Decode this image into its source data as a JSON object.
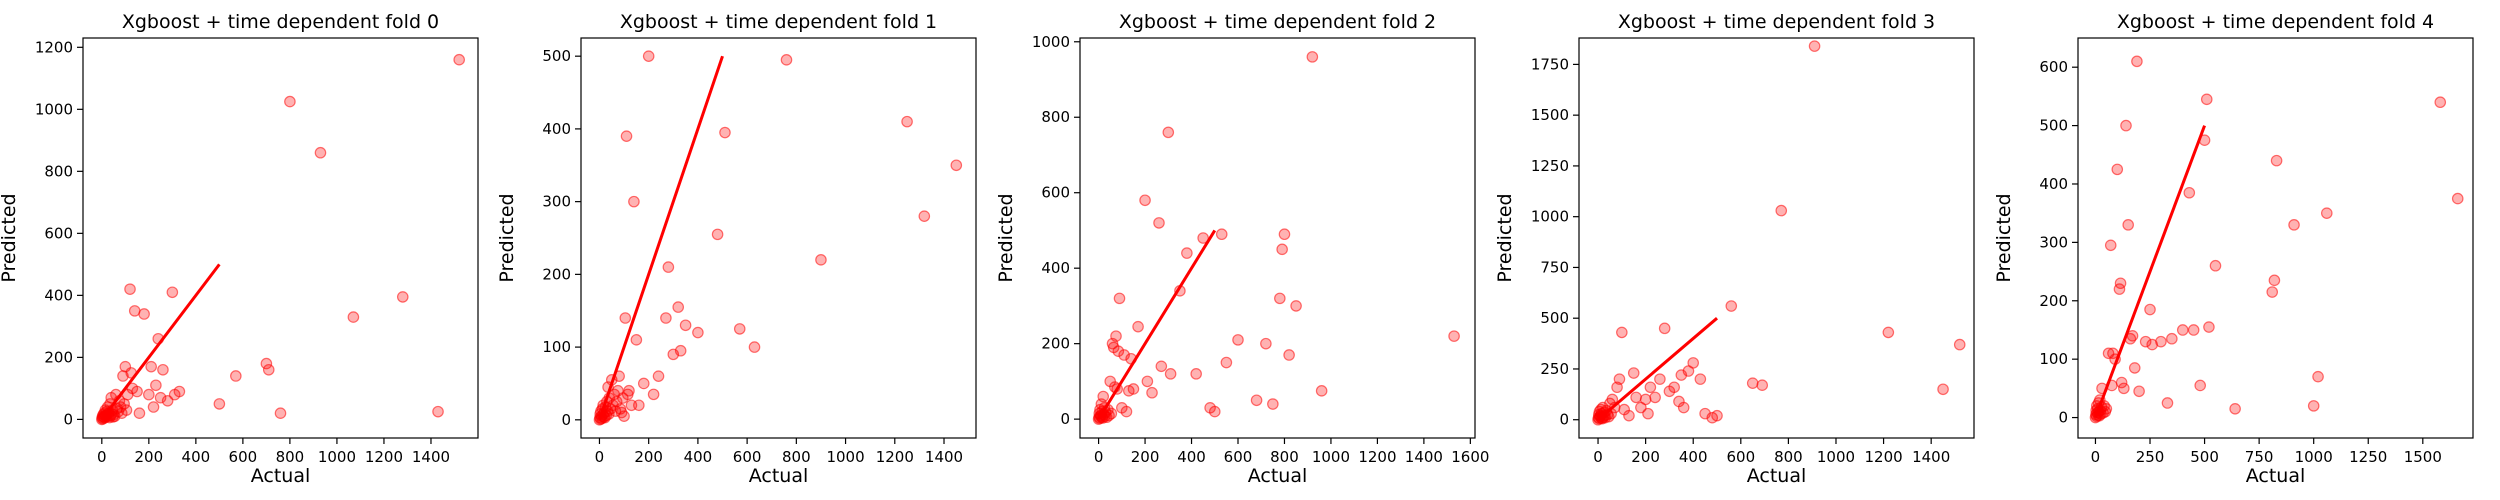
{
  "colors": {
    "points": "#ff0000",
    "line": "#ff0000",
    "frame": "#000000"
  },
  "chart_data": [
    {
      "type": "scatter",
      "title": "Xgboost + time dependent fold 0",
      "xlabel": "Actual",
      "ylabel": "Predicted",
      "xlim": [
        -80,
        1600
      ],
      "ylim": [
        -60,
        1230
      ],
      "xticks": [
        0,
        200,
        400,
        600,
        800,
        1000,
        1200,
        1400
      ],
      "yticks": [
        0,
        200,
        400,
        600,
        800,
        1000,
        1200
      ],
      "line": [
        [
          0,
          0
        ],
        [
          500,
          500
        ]
      ],
      "points": [
        [
          0,
          0
        ],
        [
          2,
          5
        ],
        [
          3,
          10
        ],
        [
          5,
          2
        ],
        [
          6,
          15
        ],
        [
          8,
          8
        ],
        [
          10,
          20
        ],
        [
          12,
          5
        ],
        [
          14,
          12
        ],
        [
          15,
          30
        ],
        [
          18,
          8
        ],
        [
          20,
          25
        ],
        [
          22,
          15
        ],
        [
          25,
          40
        ],
        [
          28,
          10
        ],
        [
          30,
          20
        ],
        [
          33,
          6
        ],
        [
          35,
          50
        ],
        [
          38,
          12
        ],
        [
          40,
          70
        ],
        [
          42,
          18
        ],
        [
          45,
          30
        ],
        [
          48,
          8
        ],
        [
          50,
          15
        ],
        [
          55,
          10
        ],
        [
          60,
          80
        ],
        [
          65,
          35
        ],
        [
          70,
          25
        ],
        [
          75,
          60
        ],
        [
          80,
          40
        ],
        [
          85,
          20
        ],
        [
          90,
          140
        ],
        [
          95,
          50
        ],
        [
          100,
          170
        ],
        [
          105,
          30
        ],
        [
          110,
          80
        ],
        [
          120,
          420
        ],
        [
          125,
          150
        ],
        [
          130,
          100
        ],
        [
          140,
          350
        ],
        [
          150,
          90
        ],
        [
          160,
          20
        ],
        [
          180,
          340
        ],
        [
          200,
          80
        ],
        [
          210,
          170
        ],
        [
          220,
          40
        ],
        [
          230,
          110
        ],
        [
          240,
          260
        ],
        [
          250,
          70
        ],
        [
          260,
          160
        ],
        [
          280,
          60
        ],
        [
          300,
          410
        ],
        [
          310,
          80
        ],
        [
          330,
          90
        ],
        [
          500,
          50
        ],
        [
          570,
          140
        ],
        [
          700,
          180
        ],
        [
          710,
          160
        ],
        [
          760,
          20
        ],
        [
          800,
          1025
        ],
        [
          930,
          860
        ],
        [
          1070,
          330
        ],
        [
          1280,
          395
        ],
        [
          1430,
          25
        ],
        [
          1520,
          1160
        ]
      ]
    },
    {
      "type": "scatter",
      "title": "Xgboost + time dependent fold 1",
      "xlabel": "Actual",
      "ylabel": "Predicted",
      "xlim": [
        -75,
        1530
      ],
      "ylim": [
        -25,
        525
      ],
      "xticks": [
        0,
        200,
        400,
        600,
        800,
        1000,
        1200,
        1400
      ],
      "yticks": [
        0,
        100,
        200,
        300,
        400,
        500
      ],
      "line": [
        [
          0,
          0
        ],
        [
          500,
          500
        ]
      ],
      "points": [
        [
          0,
          0
        ],
        [
          2,
          3
        ],
        [
          3,
          8
        ],
        [
          5,
          1
        ],
        [
          6,
          12
        ],
        [
          8,
          5
        ],
        [
          10,
          2
        ],
        [
          12,
          15
        ],
        [
          14,
          7
        ],
        [
          15,
          20
        ],
        [
          18,
          4
        ],
        [
          20,
          10
        ],
        [
          22,
          3
        ],
        [
          25,
          18
        ],
        [
          28,
          6
        ],
        [
          30,
          25
        ],
        [
          33,
          12
        ],
        [
          35,
          45
        ],
        [
          38,
          8
        ],
        [
          40,
          30
        ],
        [
          45,
          15
        ],
        [
          50,
          55
        ],
        [
          55,
          20
        ],
        [
          60,
          35
        ],
        [
          65,
          12
        ],
        [
          70,
          25
        ],
        [
          75,
          40
        ],
        [
          80,
          60
        ],
        [
          85,
          15
        ],
        [
          90,
          10
        ],
        [
          95,
          30
        ],
        [
          100,
          5
        ],
        [
          105,
          140
        ],
        [
          110,
          390
        ],
        [
          115,
          35
        ],
        [
          120,
          40
        ],
        [
          130,
          20
        ],
        [
          140,
          300
        ],
        [
          150,
          110
        ],
        [
          160,
          20
        ],
        [
          180,
          50
        ],
        [
          200,
          500
        ],
        [
          220,
          35
        ],
        [
          240,
          60
        ],
        [
          270,
          140
        ],
        [
          280,
          210
        ],
        [
          300,
          90
        ],
        [
          320,
          155
        ],
        [
          330,
          95
        ],
        [
          350,
          130
        ],
        [
          400,
          120
        ],
        [
          480,
          255
        ],
        [
          510,
          395
        ],
        [
          570,
          125
        ],
        [
          630,
          100
        ],
        [
          760,
          495
        ],
        [
          900,
          220
        ],
        [
          1250,
          410
        ],
        [
          1320,
          280
        ],
        [
          1450,
          350
        ]
      ]
    },
    {
      "type": "scatter",
      "title": "Xgboost + time dependent fold 2",
      "xlabel": "Actual",
      "ylabel": "Predicted",
      "xlim": [
        -80,
        1620
      ],
      "ylim": [
        -50,
        1010
      ],
      "xticks": [
        0,
        200,
        400,
        600,
        800,
        1000,
        1200,
        1400,
        1600
      ],
      "yticks": [
        0,
        200,
        400,
        600,
        800,
        1000
      ],
      "line": [
        [
          0,
          0
        ],
        [
          500,
          500
        ]
      ],
      "points": [
        [
          0,
          0
        ],
        [
          2,
          5
        ],
        [
          3,
          15
        ],
        [
          5,
          2
        ],
        [
          6,
          25
        ],
        [
          8,
          8
        ],
        [
          10,
          10
        ],
        [
          12,
          40
        ],
        [
          14,
          5
        ],
        [
          15,
          20
        ],
        [
          18,
          3
        ],
        [
          20,
          60
        ],
        [
          22,
          12
        ],
        [
          25,
          30
        ],
        [
          28,
          8
        ],
        [
          30,
          18
        ],
        [
          35,
          5
        ],
        [
          40,
          25
        ],
        [
          45,
          10
        ],
        [
          50,
          100
        ],
        [
          55,
          15
        ],
        [
          60,
          200
        ],
        [
          65,
          190
        ],
        [
          70,
          85
        ],
        [
          75,
          220
        ],
        [
          80,
          80
        ],
        [
          85,
          180
        ],
        [
          90,
          320
        ],
        [
          100,
          30
        ],
        [
          110,
          170
        ],
        [
          120,
          20
        ],
        [
          130,
          75
        ],
        [
          140,
          160
        ],
        [
          150,
          80
        ],
        [
          170,
          245
        ],
        [
          200,
          580
        ],
        [
          210,
          100
        ],
        [
          230,
          70
        ],
        [
          260,
          520
        ],
        [
          270,
          140
        ],
        [
          300,
          760
        ],
        [
          310,
          120
        ],
        [
          350,
          340
        ],
        [
          380,
          440
        ],
        [
          420,
          120
        ],
        [
          450,
          480
        ],
        [
          480,
          30
        ],
        [
          500,
          20
        ],
        [
          530,
          490
        ],
        [
          550,
          150
        ],
        [
          600,
          210
        ],
        [
          680,
          50
        ],
        [
          720,
          200
        ],
        [
          750,
          40
        ],
        [
          780,
          320
        ],
        [
          790,
          450
        ],
        [
          800,
          490
        ],
        [
          820,
          170
        ],
        [
          850,
          300
        ],
        [
          920,
          960
        ],
        [
          960,
          75
        ],
        [
          1530,
          220
        ]
      ]
    },
    {
      "type": "scatter",
      "title": "Xgboost + time dependent fold 3",
      "xlabel": "Actual",
      "ylabel": "Predicted",
      "xlim": [
        -80,
        1580
      ],
      "ylim": [
        -90,
        1880
      ],
      "xticks": [
        0,
        200,
        400,
        600,
        800,
        1000,
        1200,
        1400
      ],
      "yticks": [
        0,
        250,
        500,
        750,
        1000,
        1250,
        1500,
        1750
      ],
      "line": [
        [
          0,
          0
        ],
        [
          500,
          500
        ]
      ],
      "points": [
        [
          0,
          0
        ],
        [
          2,
          10
        ],
        [
          3,
          25
        ],
        [
          5,
          5
        ],
        [
          6,
          40
        ],
        [
          8,
          15
        ],
        [
          10,
          20
        ],
        [
          12,
          50
        ],
        [
          14,
          8
        ],
        [
          15,
          30
        ],
        [
          18,
          5
        ],
        [
          20,
          60
        ],
        [
          22,
          12
        ],
        [
          25,
          35
        ],
        [
          28,
          20
        ],
        [
          30,
          10
        ],
        [
          35,
          45
        ],
        [
          40,
          25
        ],
        [
          45,
          15
        ],
        [
          50,
          80
        ],
        [
          55,
          30
        ],
        [
          60,
          100
        ],
        [
          70,
          60
        ],
        [
          80,
          160
        ],
        [
          90,
          200
        ],
        [
          100,
          430
        ],
        [
          110,
          50
        ],
        [
          130,
          20
        ],
        [
          150,
          230
        ],
        [
          160,
          110
        ],
        [
          180,
          60
        ],
        [
          200,
          100
        ],
        [
          210,
          30
        ],
        [
          220,
          160
        ],
        [
          240,
          110
        ],
        [
          260,
          200
        ],
        [
          280,
          450
        ],
        [
          300,
          140
        ],
        [
          320,
          160
        ],
        [
          340,
          90
        ],
        [
          350,
          220
        ],
        [
          360,
          60
        ],
        [
          380,
          240
        ],
        [
          400,
          280
        ],
        [
          430,
          200
        ],
        [
          450,
          30
        ],
        [
          480,
          10
        ],
        [
          500,
          20
        ],
        [
          560,
          560
        ],
        [
          650,
          180
        ],
        [
          690,
          170
        ],
        [
          770,
          1030
        ],
        [
          910,
          1840
        ],
        [
          1220,
          430
        ],
        [
          1450,
          150
        ],
        [
          1520,
          370
        ]
      ]
    },
    {
      "type": "scatter",
      "title": "Xgboost + time dependent fold 4",
      "xlabel": "Actual",
      "ylabel": "Predicted",
      "xlim": [
        -80,
        1730
      ],
      "ylim": [
        -35,
        650
      ],
      "xticks": [
        0,
        250,
        500,
        750,
        1000,
        1250,
        1500
      ],
      "yticks": [
        0,
        100,
        200,
        300,
        400,
        500,
        600
      ],
      "line": [
        [
          0,
          0
        ],
        [
          500,
          500
        ]
      ],
      "points": [
        [
          0,
          0
        ],
        [
          2,
          5
        ],
        [
          3,
          12
        ],
        [
          5,
          2
        ],
        [
          6,
          20
        ],
        [
          8,
          8
        ],
        [
          10,
          15
        ],
        [
          12,
          4
        ],
        [
          14,
          25
        ],
        [
          15,
          10
        ],
        [
          18,
          3
        ],
        [
          20,
          30
        ],
        [
          22,
          12
        ],
        [
          25,
          6
        ],
        [
          28,
          18
        ],
        [
          30,
          50
        ],
        [
          35,
          8
        ],
        [
          40,
          20
        ],
        [
          45,
          10
        ],
        [
          50,
          15
        ],
        [
          60,
          110
        ],
        [
          70,
          295
        ],
        [
          75,
          55
        ],
        [
          80,
          110
        ],
        [
          90,
          100
        ],
        [
          100,
          425
        ],
        [
          110,
          220
        ],
        [
          115,
          230
        ],
        [
          120,
          60
        ],
        [
          130,
          50
        ],
        [
          140,
          500
        ],
        [
          150,
          330
        ],
        [
          160,
          135
        ],
        [
          170,
          140
        ],
        [
          180,
          85
        ],
        [
          190,
          610
        ],
        [
          200,
          45
        ],
        [
          230,
          130
        ],
        [
          250,
          185
        ],
        [
          260,
          125
        ],
        [
          300,
          130
        ],
        [
          330,
          25
        ],
        [
          350,
          135
        ],
        [
          400,
          150
        ],
        [
          430,
          385
        ],
        [
          450,
          150
        ],
        [
          480,
          55
        ],
        [
          500,
          475
        ],
        [
          510,
          545
        ],
        [
          520,
          155
        ],
        [
          550,
          260
        ],
        [
          640,
          15
        ],
        [
          810,
          215
        ],
        [
          820,
          235
        ],
        [
          830,
          440
        ],
        [
          910,
          330
        ],
        [
          1000,
          20
        ],
        [
          1020,
          70
        ],
        [
          1060,
          350
        ],
        [
          1580,
          540
        ],
        [
          1660,
          375
        ]
      ]
    }
  ]
}
